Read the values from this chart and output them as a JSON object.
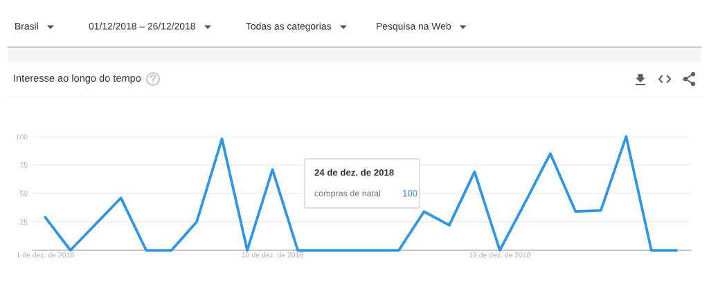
{
  "chart_data": {
    "type": "line",
    "title": "Interesse ao longo do tempo",
    "annotations": [
      "Brasil",
      "01/12/2018 – 26/12/2018",
      "Todas as categorias",
      "Pesquisa na Web",
      "24 de dez. de 2018",
      "100"
    ],
    "x": [
      "2018-12-01",
      "2018-12-02",
      "2018-12-03",
      "2018-12-04",
      "2018-12-05",
      "2018-12-06",
      "2018-12-07",
      "2018-12-08",
      "2018-12-09",
      "2018-12-10",
      "2018-12-11",
      "2018-12-12",
      "2018-12-13",
      "2018-12-14",
      "2018-12-15",
      "2018-12-16",
      "2018-12-17",
      "2018-12-18",
      "2018-12-19",
      "2018-12-20",
      "2018-12-21",
      "2018-12-22",
      "2018-12-23",
      "2018-12-24",
      "2018-12-25",
      "2018-12-26"
    ],
    "series": [
      {
        "name": "compras de natal",
        "color": "#2d96e6",
        "values": [
          29,
          0,
          23,
          46,
          0,
          0,
          25,
          98,
          0,
          71,
          0,
          0,
          0,
          0,
          0,
          34,
          22,
          69,
          0,
          42,
          85,
          34,
          35,
          100,
          0,
          0
        ]
      }
    ],
    "xlim": [
      "2018-11-30T12:00",
      "2018-12-26T13:00"
    ],
    "xticks": [
      {
        "value": "2018-12-01",
        "label": "1 de dez. de 2018"
      },
      {
        "value": "2018-12-10",
        "label": "10 de dez. de 2018"
      },
      {
        "value": "2018-12-19",
        "label": "19 de dez. de 2018"
      }
    ],
    "ylim": [
      0,
      100
    ],
    "yticks": [
      25,
      50,
      75,
      100
    ],
    "grid": "y",
    "line_style": "solid"
  }
}
